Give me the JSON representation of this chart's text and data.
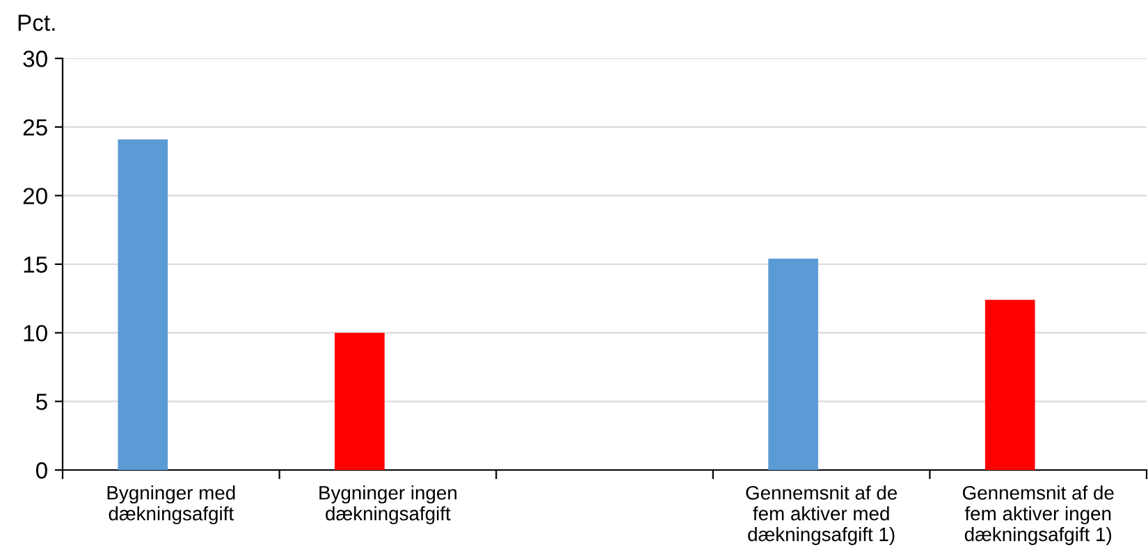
{
  "chart_data": {
    "type": "bar",
    "ylabel": "Pct.",
    "categories": [
      "Bygninger med\ndækningsafgift",
      "Bygninger ingen\ndækningsafgift",
      null,
      "Gennemsnit af de\nfem aktiver med\ndækningsafgift 1)",
      "Gennemsnit af de\nfem aktiver ingen\ndækningsafgift 1)"
    ],
    "values": [
      24.1,
      10.0,
      null,
      15.4,
      12.4
    ],
    "colors": [
      "#5b9bd5",
      "#ff0000",
      "#5b9bd5",
      "#5b9bd5",
      "#ff0000"
    ],
    "ylim": [
      0,
      30
    ],
    "yticks": [
      0,
      5,
      10,
      15,
      20,
      25,
      30
    ],
    "grid": "y"
  }
}
